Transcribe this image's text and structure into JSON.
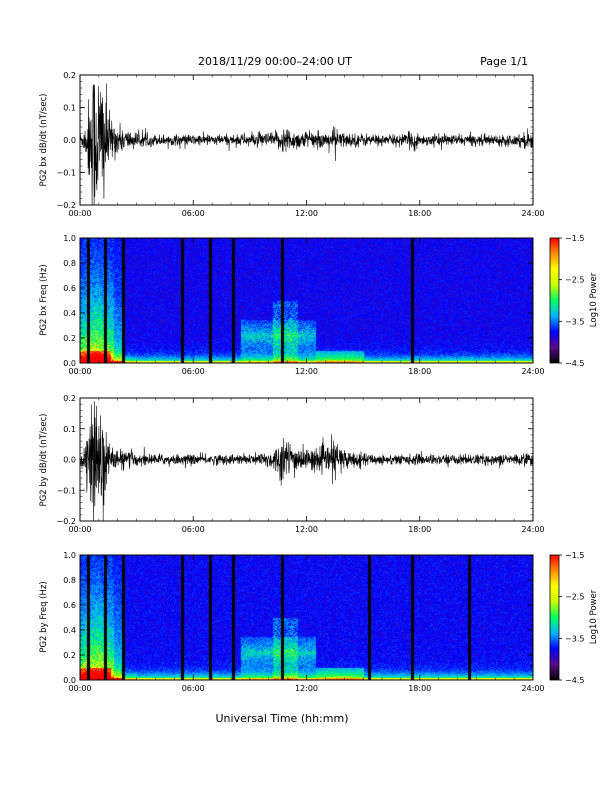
{
  "header": {
    "title": "2018/11/29  00:00–24:00 UT",
    "page_label": "Page 1/1"
  },
  "footer": {
    "xlabel": "Universal Time (hh:mm)"
  },
  "colors": {
    "trace": "#000000",
    "colorbar_stops": [
      "#000000",
      "#5a0a8c",
      "#0000ff",
      "#00b4ff",
      "#00ff60",
      "#c8ff00",
      "#ffff00",
      "#ff8c00",
      "#ff0000"
    ]
  },
  "chart_data": [
    {
      "type": "line",
      "ylabel": "PG2 bx dB/dt (nT/sec)",
      "x_ticks": [
        "00:00",
        "06:00",
        "12:00",
        "18:00",
        "24:00"
      ],
      "xlim": [
        0,
        24
      ],
      "ylim": [
        -0.2,
        0.2
      ],
      "y_ticks": [
        "0.2",
        "0.1",
        "0.0",
        "−0.1",
        "−0.2"
      ],
      "y_tick_values": [
        0.2,
        0.1,
        0.0,
        -0.1,
        -0.2
      ],
      "envelope": {
        "x": [
          0,
          0.2,
          0.4,
          0.6,
          0.8,
          1.0,
          1.2,
          1.4,
          1.6,
          2.0,
          2.5,
          3.0,
          4.0,
          5.0,
          6.0,
          7.0,
          8.0,
          9.0,
          10.0,
          10.5,
          10.8,
          11.0,
          11.5,
          12.0,
          13.0,
          13.5,
          14.0,
          15.0,
          16.0,
          17.0,
          17.5,
          17.7,
          18.0,
          19.0,
          20.0,
          21.0,
          22.0,
          23.0,
          23.7,
          24.0
        ],
        "amplitude": [
          0.02,
          0.03,
          0.08,
          0.2,
          0.22,
          0.2,
          0.22,
          0.12,
          0.06,
          0.04,
          0.03,
          0.02,
          0.015,
          0.015,
          0.015,
          0.015,
          0.015,
          0.018,
          0.02,
          0.025,
          0.04,
          0.035,
          0.025,
          0.025,
          0.02,
          0.035,
          0.02,
          0.018,
          0.015,
          0.015,
          0.02,
          0.035,
          0.015,
          0.015,
          0.015,
          0.015,
          0.015,
          0.015,
          0.025,
          0.03
        ]
      }
    },
    {
      "type": "heatmap",
      "ylabel": "PG2 bx Freq (Hz)",
      "colorbar_label": "Log10 Power",
      "colorbar_ticks": [
        "−1.5",
        "−2.5",
        "−3.5",
        "−4.5"
      ],
      "colorbar_range": [
        -4.5,
        -1.5
      ],
      "x_ticks": [
        "00:00",
        "06:00",
        "12:00",
        "18:00",
        "24:00"
      ],
      "xlim": [
        0,
        24
      ],
      "ylim": [
        0,
        1
      ],
      "y_ticks": [
        "1.0",
        "0.8",
        "0.6",
        "0.4",
        "0.2",
        "0.0"
      ],
      "y_tick_values": [
        1.0,
        0.8,
        0.6,
        0.4,
        0.2,
        0.0
      ],
      "gap_times": [
        0.4,
        1.3,
        2.3,
        5.4,
        6.9,
        8.1,
        10.7,
        17.6
      ]
    },
    {
      "type": "line",
      "ylabel": "PG2 by dB/dt (nT/sec)",
      "x_ticks": [
        "00:00",
        "06:00",
        "12:00",
        "18:00",
        "24:00"
      ],
      "xlim": [
        0,
        24
      ],
      "ylim": [
        -0.2,
        0.2
      ],
      "y_ticks": [
        "0.2",
        "0.1",
        "0.0",
        "−0.1",
        "−0.2"
      ],
      "y_tick_values": [
        0.2,
        0.1,
        0.0,
        -0.1,
        -0.2
      ],
      "envelope": {
        "x": [
          0,
          0.2,
          0.4,
          0.6,
          0.8,
          1.0,
          1.2,
          1.4,
          1.6,
          2.0,
          2.5,
          3.0,
          4.0,
          5.0,
          6.0,
          7.0,
          8.0,
          9.0,
          10.0,
          10.5,
          10.8,
          11.0,
          11.5,
          12.0,
          13.0,
          13.5,
          14.0,
          15.0,
          16.0,
          17.0,
          18.0,
          19.0,
          20.0,
          21.0,
          22.0,
          23.0,
          23.7,
          24.0
        ],
        "amplitude": [
          0.02,
          0.03,
          0.07,
          0.12,
          0.18,
          0.2,
          0.18,
          0.08,
          0.04,
          0.03,
          0.025,
          0.02,
          0.015,
          0.015,
          0.015,
          0.015,
          0.015,
          0.015,
          0.025,
          0.045,
          0.07,
          0.06,
          0.04,
          0.03,
          0.035,
          0.06,
          0.03,
          0.018,
          0.015,
          0.015,
          0.015,
          0.015,
          0.015,
          0.015,
          0.015,
          0.015,
          0.02,
          0.02
        ]
      }
    },
    {
      "type": "heatmap",
      "ylabel": "PG2 by Freq (Hz)",
      "colorbar_label": "Log10 Power",
      "colorbar_ticks": [
        "−1.5",
        "−2.5",
        "−3.5",
        "−4.5"
      ],
      "colorbar_range": [
        -4.5,
        -1.5
      ],
      "x_ticks": [
        "00:00",
        "06:00",
        "12:00",
        "18:00",
        "24:00"
      ],
      "xlim": [
        0,
        24
      ],
      "ylim": [
        0,
        1
      ],
      "y_ticks": [
        "1.0",
        "0.8",
        "0.6",
        "0.4",
        "0.2",
        "0.0"
      ],
      "y_tick_values": [
        1.0,
        0.8,
        0.6,
        0.4,
        0.2,
        0.0
      ],
      "gap_times": [
        0.4,
        1.3,
        2.3,
        5.4,
        6.9,
        8.1,
        10.7,
        15.3,
        17.6,
        20.6
      ]
    }
  ]
}
